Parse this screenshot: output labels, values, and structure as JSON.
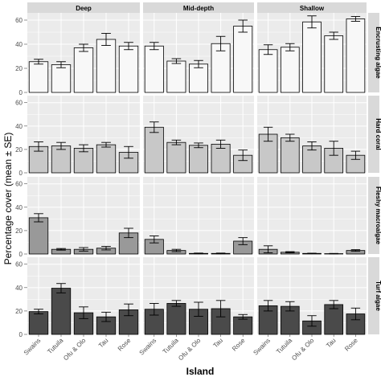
{
  "chart_data": {
    "type": "bar",
    "layout": "facet-grid 4 rows x 3 columns, error bars",
    "xlabel": "Island",
    "ylabel": "Percentage cover (mean ± SE)",
    "categories": [
      "Swains",
      "Tutuila",
      "Ofu & Olo",
      "Tau",
      "Rose"
    ],
    "column_facets": [
      "Deep",
      "Mid-depth",
      "Shallow"
    ],
    "row_facets": [
      {
        "name": "Encrusting algae",
        "fill": "#f8f8f8"
      },
      {
        "name": "Hard coral",
        "fill": "#c8c8c8"
      },
      {
        "name": "Fleshy macroalgae",
        "fill": "#999999"
      },
      {
        "name": "Turf algae",
        "fill": "#4a4a4a"
      }
    ],
    "ylim": [
      0,
      66
    ],
    "yticks": [
      0,
      20,
      40,
      60
    ],
    "grid": true,
    "panels": [
      [
        {
          "values": [
            25.5,
            23,
            37,
            44,
            38.5
          ],
          "se": [
            2,
            2.5,
            3,
            5,
            3
          ]
        },
        {
          "values": [
            38.5,
            26,
            23.5,
            40.5,
            55
          ],
          "se": [
            3,
            2,
            3,
            6,
            5
          ]
        },
        {
          "values": [
            35.5,
            37.5,
            58.5,
            47,
            61
          ],
          "se": [
            4,
            3,
            5,
            3,
            2
          ]
        }
      ],
      [
        {
          "values": [
            22.5,
            23,
            21,
            24,
            17.5
          ],
          "se": [
            4,
            3,
            3,
            2,
            5
          ]
        },
        {
          "values": [
            39,
            26,
            23.5,
            24.5,
            15
          ],
          "se": [
            4.5,
            2,
            2,
            3.5,
            4.5
          ]
        },
        {
          "values": [
            33,
            30,
            23,
            21,
            15
          ],
          "se": [
            6,
            3,
            3.5,
            6,
            3.5
          ]
        }
      ],
      [
        {
          "values": [
            31,
            4,
            4,
            5,
            18
          ],
          "se": [
            3.5,
            0.7,
            1.5,
            1.5,
            4
          ]
        },
        {
          "values": [
            12.5,
            3,
            0.5,
            0.5,
            11
          ],
          "se": [
            3,
            1,
            0.3,
            0.3,
            3
          ]
        },
        {
          "values": [
            4,
            1.5,
            0.5,
            0.3,
            3
          ],
          "se": [
            3,
            0.5,
            0.2,
            0.2,
            0.7
          ]
        }
      ],
      [
        {
          "values": [
            19.5,
            39.5,
            18.5,
            15,
            21
          ],
          "se": [
            2,
            4,
            5,
            4,
            5
          ]
        },
        {
          "values": [
            21.5,
            26.5,
            21.5,
            22,
            15
          ],
          "se": [
            5,
            2.5,
            6,
            7,
            2
          ]
        },
        {
          "values": [
            24.5,
            24,
            11.5,
            25.5,
            17.5
          ],
          "se": [
            4.5,
            4,
            4.5,
            3.5,
            5
          ]
        }
      ]
    ]
  }
}
